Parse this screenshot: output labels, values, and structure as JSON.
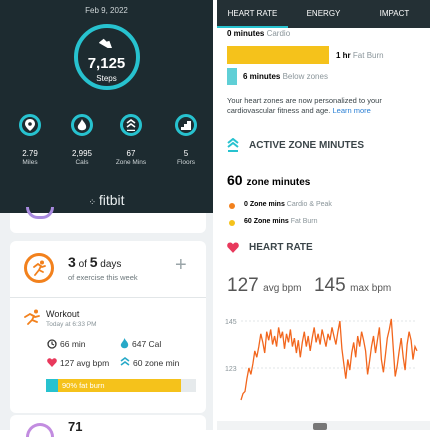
{
  "watch": {
    "date": "Feb 9, 2022",
    "steps_value": "7,125",
    "steps_label": "Steps",
    "stats": [
      {
        "value": "2.79",
        "label": "Miles"
      },
      {
        "value": "2,995",
        "label": "Cals"
      },
      {
        "value": "67",
        "label": "Zone Mins"
      },
      {
        "value": "5",
        "label": "Floors"
      }
    ],
    "brand": "fitbit",
    "accent": "#27c2cf"
  },
  "zones_panel": {
    "tabs": [
      "HEART RATE",
      "ENERGY",
      "IMPACT"
    ],
    "cardio_value": "0 minutes",
    "cardio_label": "Cardio",
    "fatburn_value": "1 hr",
    "fatburn_label": "Fat Burn",
    "below_value": "6 minutes",
    "below_label": "Below zones",
    "info_text": "Your heart zones are now personalized to your cardiovascular fitness and age.",
    "learn_more": "Learn more",
    "azm_title": "ACTIVE ZONE MINUTES",
    "azm_value": "60",
    "azm_unit": "zone minutes",
    "azm_rows": [
      {
        "value": "0 Zone mins",
        "label": "Cardio & Peak",
        "color": "#f2811d"
      },
      {
        "value": "60 Zone mins",
        "label": "Fat Burn",
        "color": "#f5c21b"
      }
    ],
    "hr_title": "HEART RATE"
  },
  "exercise": {
    "goal_done": "3",
    "goal_of": "of",
    "goal_total": "5",
    "goal_unit": "days",
    "goal_sub": "of exercise this week",
    "add_icon": "plus-icon",
    "workout_title": "Workout",
    "workout_time": "Today at 6:33 PM",
    "duration": "66 min",
    "calories": "647 Cal",
    "avg_bpm": "127 avg bpm",
    "zone_min": "60 zone min",
    "fatburn_bar": "90% fat burn",
    "fatburn_fraction": 0.9,
    "next_value": "71"
  },
  "heart_chart": {
    "avg_value": "127",
    "avg_label": "avg bpm",
    "max_value": "145",
    "max_label": "max bpm"
  },
  "chart_data": {
    "type": "line",
    "y_ticks": [
      "145",
      "123"
    ],
    "ylim": [
      108,
      150
    ],
    "series": [
      {
        "color": "#f2661d",
        "values": [
          108,
          111,
          112,
          118,
          123,
          120,
          125,
          131,
          128,
          133,
          139,
          135,
          130,
          140,
          136,
          141,
          134,
          138,
          133,
          142,
          137,
          140,
          132,
          139,
          135,
          141,
          133,
          137,
          130,
          136,
          128,
          135,
          140,
          133,
          138,
          131,
          137,
          142,
          135,
          139,
          134,
          141,
          137,
          133,
          139,
          136,
          142,
          138,
          134,
          140,
          145,
          132,
          125,
          118,
          127,
          122,
          130,
          135,
          128,
          138,
          133,
          140,
          136,
          131,
          120,
          126,
          133,
          138,
          130,
          136,
          142,
          127,
          121,
          129,
          137,
          141,
          146,
          132,
          119,
          124,
          131,
          137,
          128,
          122,
          134,
          140,
          136,
          127,
          133,
          131
        ]
      }
    ]
  }
}
